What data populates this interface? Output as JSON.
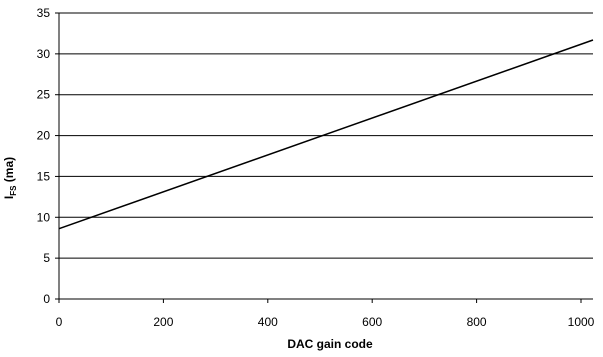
{
  "chart_data": {
    "type": "line",
    "title": "",
    "xlabel": "DAC gain code",
    "ylabel": {
      "main": "I",
      "sub": "FS",
      "rest": " (ma)"
    },
    "xlim": [
      0,
      1023
    ],
    "ylim": [
      0,
      35
    ],
    "xticks": [
      0,
      200,
      400,
      600,
      800,
      1000
    ],
    "yticks": [
      0,
      5,
      10,
      15,
      20,
      25,
      30,
      35
    ],
    "x_tick_labels": [
      "0",
      "200",
      "400",
      "600",
      "800",
      "1000"
    ],
    "y_tick_labels": [
      "0",
      "5",
      "10",
      "15",
      "20",
      "25",
      "30",
      "35"
    ],
    "grid": {
      "horizontal": true,
      "vertical": false
    },
    "legend": "none",
    "series": [
      {
        "x": [
          0,
          1023
        ],
        "y": [
          8.6,
          31.7
        ],
        "color": "#000000"
      }
    ]
  }
}
